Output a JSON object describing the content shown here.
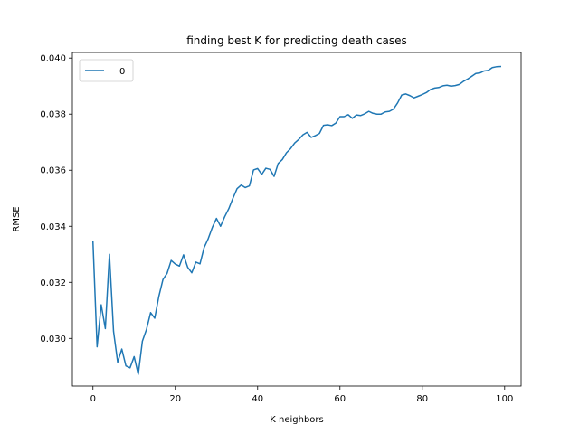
{
  "chart_data": {
    "type": "line",
    "title": "finding best K for predicting death cases",
    "xlabel": "K neighbors",
    "ylabel": "RMSE",
    "xlim": [
      -5,
      104
    ],
    "ylim": [
      0.0283,
      0.0402
    ],
    "xticks": [
      0,
      20,
      40,
      60,
      80,
      100
    ],
    "yticks": [
      0.03,
      0.032,
      0.034,
      0.036,
      0.038,
      0.04
    ],
    "ytick_labels": [
      "0.030",
      "0.032",
      "0.034",
      "0.036",
      "0.038",
      "0.040"
    ],
    "grid": false,
    "legend": "upper-left",
    "series": [
      {
        "name": "0",
        "color": "#1f77b4",
        "x": [
          0,
          1,
          2,
          3,
          4,
          5,
          6,
          7,
          8,
          9,
          10,
          11,
          12,
          13,
          14,
          15,
          16,
          17,
          18,
          19,
          20,
          21,
          22,
          23,
          24,
          25,
          26,
          27,
          28,
          29,
          30,
          31,
          32,
          33,
          34,
          35,
          36,
          37,
          38,
          39,
          40,
          41,
          42,
          43,
          44,
          45,
          46,
          47,
          48,
          49,
          50,
          51,
          52,
          53,
          54,
          55,
          56,
          57,
          58,
          59,
          60,
          61,
          62,
          63,
          64,
          65,
          66,
          67,
          68,
          69,
          70,
          71,
          72,
          73,
          74,
          75,
          76,
          77,
          78,
          79,
          80,
          81,
          82,
          83,
          84,
          85,
          86,
          87,
          88,
          89,
          90,
          91,
          92,
          93,
          94,
          95,
          96,
          97,
          98,
          99
        ],
        "values": [
          0.03345,
          0.0297,
          0.0312,
          0.03035,
          0.033,
          0.03025,
          0.02915,
          0.02962,
          0.02902,
          0.02895,
          0.02935,
          0.02872,
          0.0299,
          0.03032,
          0.03092,
          0.03072,
          0.0315,
          0.0321,
          0.03232,
          0.03278,
          0.03265,
          0.03258,
          0.03298,
          0.03254,
          0.03234,
          0.03272,
          0.03266,
          0.03324,
          0.03356,
          0.03396,
          0.03428,
          0.034,
          0.03434,
          0.03463,
          0.035,
          0.03534,
          0.03547,
          0.03538,
          0.03544,
          0.03601,
          0.03606,
          0.03585,
          0.03607,
          0.03603,
          0.03578,
          0.03624,
          0.03638,
          0.03662,
          0.03677,
          0.03697,
          0.0371,
          0.03726,
          0.03735,
          0.03717,
          0.03723,
          0.03731,
          0.0376,
          0.03762,
          0.03759,
          0.03768,
          0.03791,
          0.03791,
          0.03798,
          0.03785,
          0.03797,
          0.03795,
          0.03801,
          0.0381,
          0.03803,
          0.038,
          0.038,
          0.03808,
          0.0381,
          0.03818,
          0.0384,
          0.03868,
          0.03872,
          0.03866,
          0.03858,
          0.03864,
          0.0387,
          0.03877,
          0.03888,
          0.03893,
          0.03895,
          0.03901,
          0.03903,
          0.039,
          0.03902,
          0.03906,
          0.03917,
          0.03925,
          0.03935,
          0.03945,
          0.03947,
          0.03954,
          0.03956,
          0.03966,
          0.03969,
          0.0397
        ]
      }
    ]
  }
}
